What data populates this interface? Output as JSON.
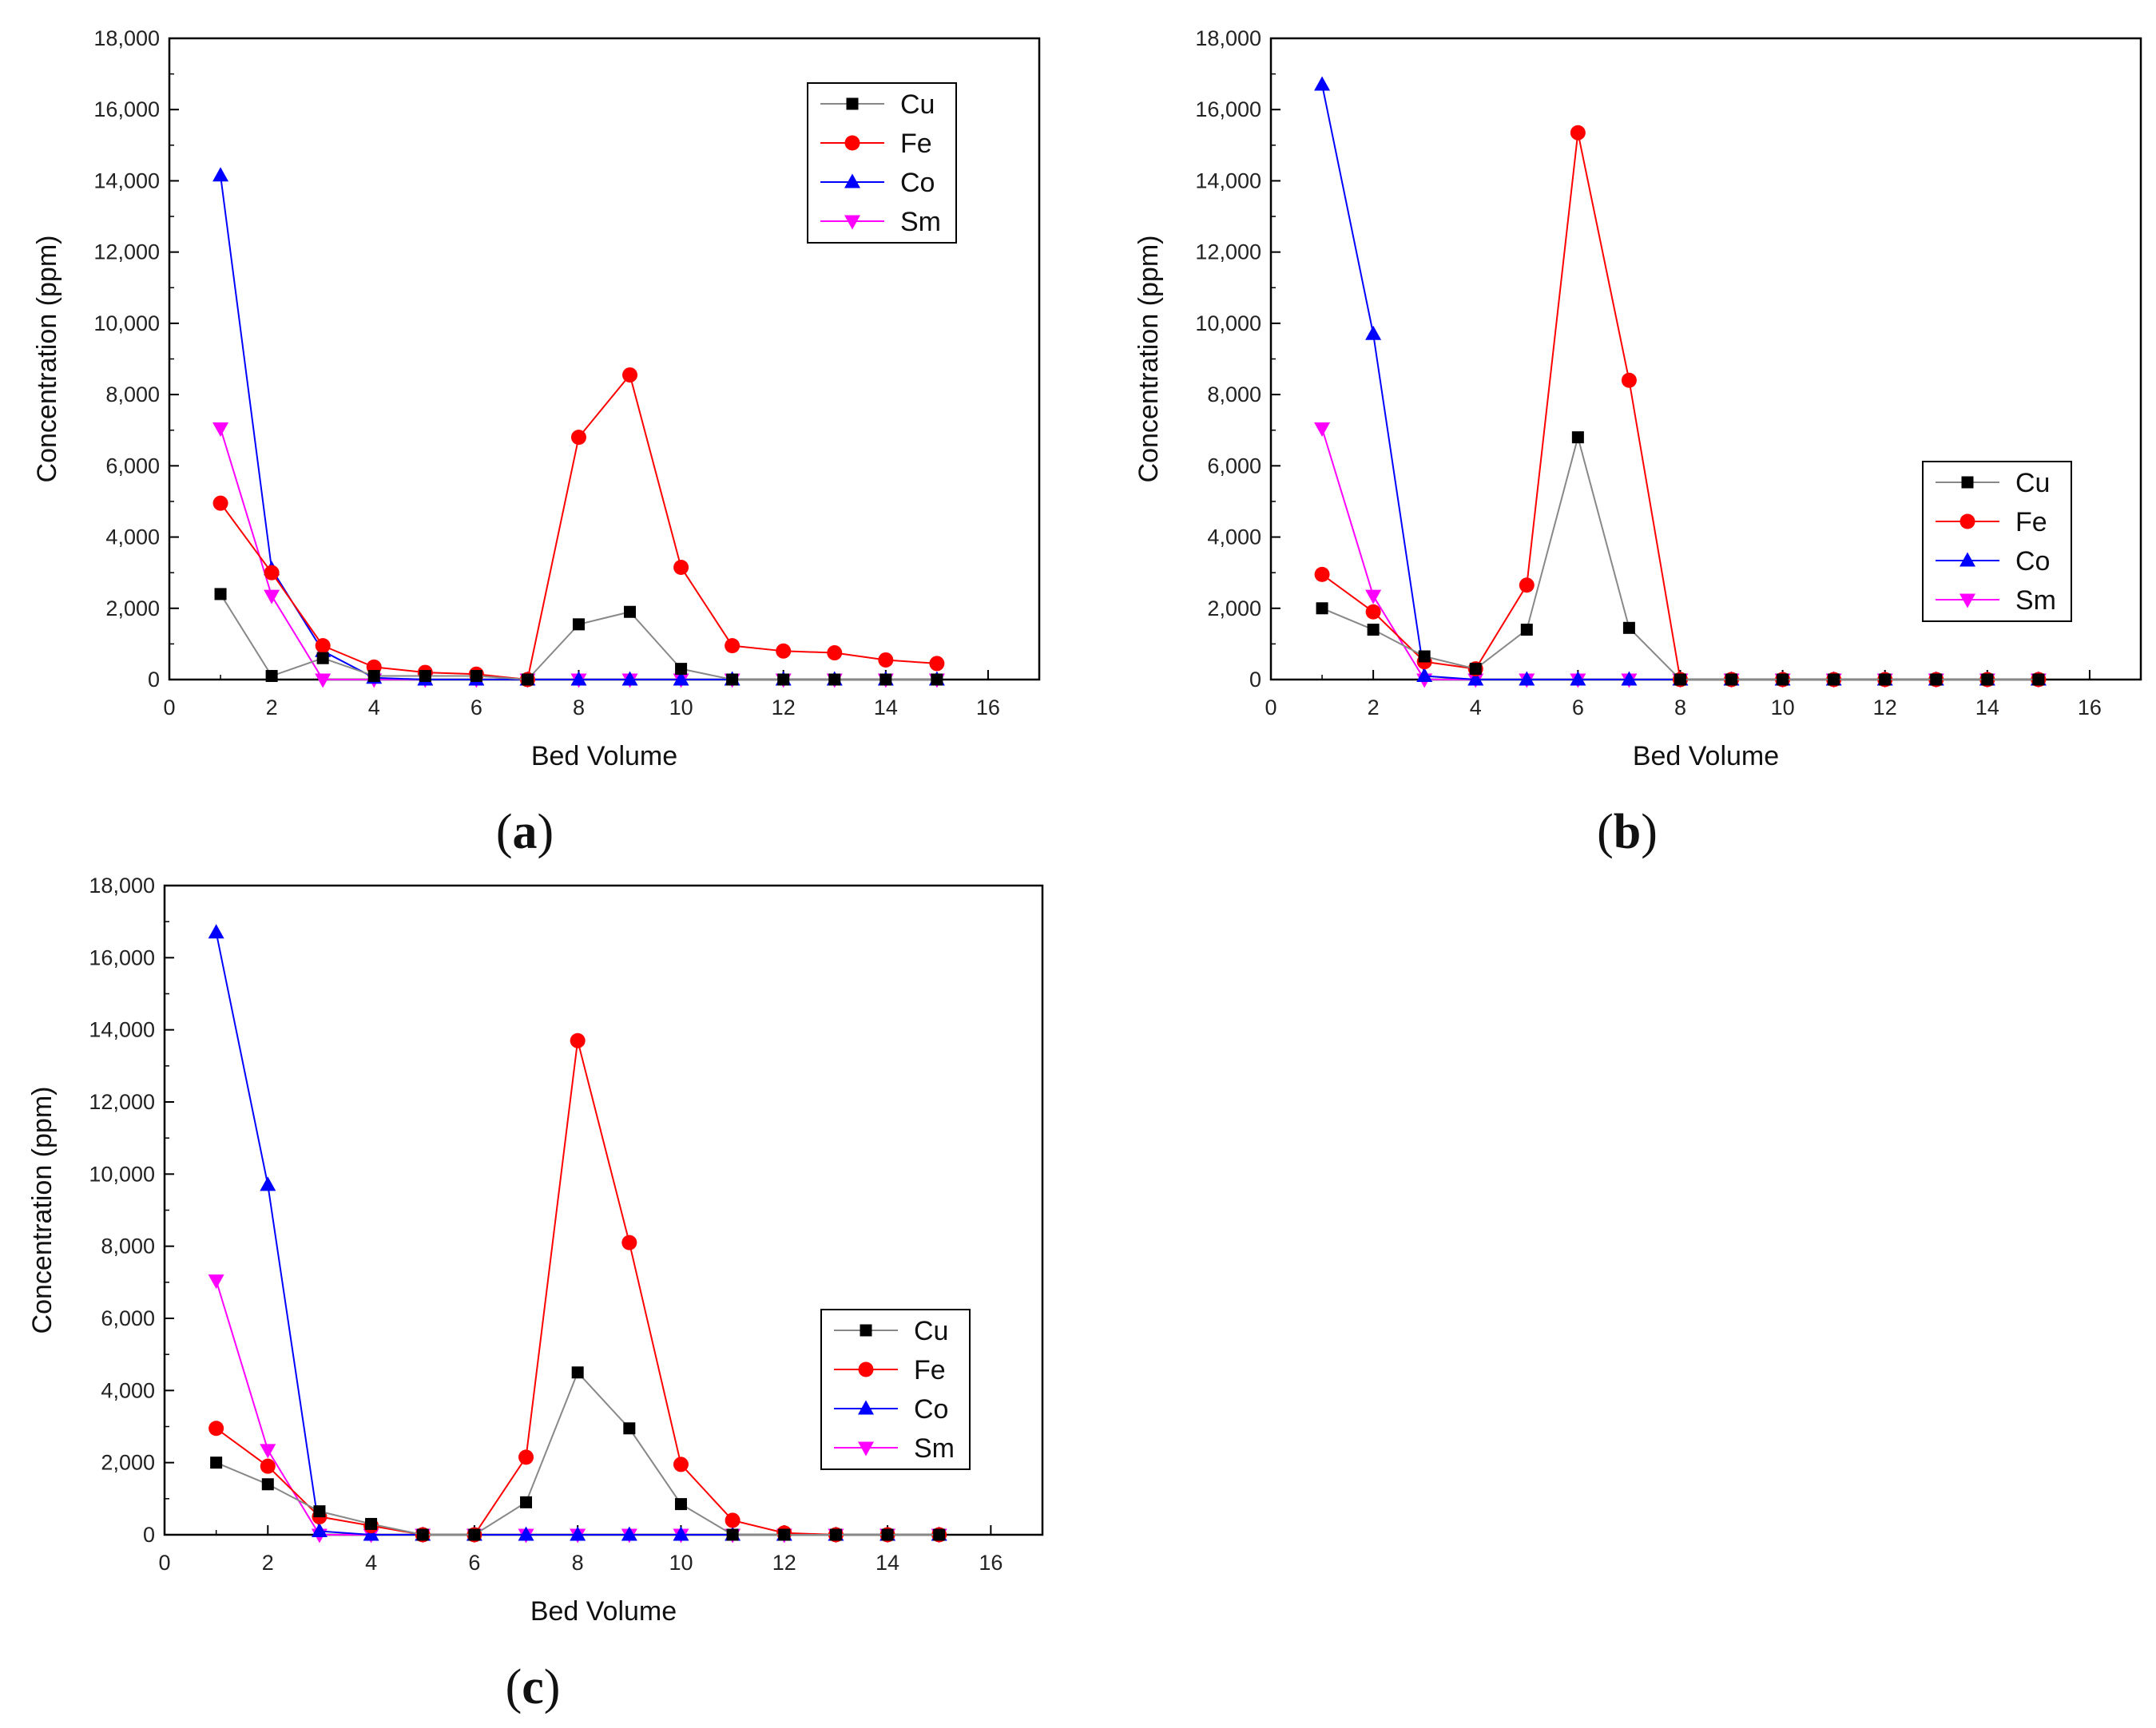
{
  "colors": {
    "Cu": "#000000",
    "Fe": "#ff0000",
    "Co": "#0000ff",
    "Sm": "#ff00ff",
    "axis": "#000000",
    "Cu_line": "#888888"
  },
  "chart_data": [
    {
      "type": "line",
      "panel_label": "a",
      "xlabel": "Bed Volume",
      "ylabel": "Concentration (ppm)",
      "xlim": [
        0,
        17
      ],
      "ylim": [
        0,
        18000
      ],
      "xticks": [
        "0",
        "2",
        "4",
        "6",
        "8",
        "10",
        "12",
        "14",
        "16"
      ],
      "yticks": [
        "0",
        "2,000",
        "4,000",
        "6,000",
        "8,000",
        "10,000",
        "12,000",
        "14,000",
        "16,000",
        "18,000"
      ],
      "legend_position": "top-right",
      "x": [
        1,
        2,
        3,
        4,
        5,
        6,
        7,
        8,
        9,
        10,
        11,
        12,
        13,
        14,
        15
      ],
      "series": [
        {
          "name": "Cu",
          "marker": "square",
          "values": [
            2400,
            100,
            600,
            100,
            100,
            100,
            0,
            1550,
            1900,
            300,
            0,
            0,
            0,
            0,
            0
          ]
        },
        {
          "name": "Fe",
          "marker": "circle",
          "values": [
            4950,
            3000,
            950,
            350,
            200,
            150,
            0,
            6800,
            8550,
            3150,
            950,
            800,
            750,
            550,
            450
          ]
        },
        {
          "name": "Co",
          "marker": "triangle-up",
          "values": [
            14150,
            3100,
            800,
            50,
            0,
            0,
            0,
            0,
            0,
            0,
            0,
            0,
            0,
            0,
            0
          ]
        },
        {
          "name": "Sm",
          "marker": "triangle-down",
          "values": [
            7050,
            2350,
            0,
            0,
            0,
            0,
            0,
            0,
            0,
            0,
            0,
            0,
            0,
            0,
            0
          ]
        }
      ]
    },
    {
      "type": "line",
      "panel_label": "b",
      "xlabel": "Bed Volume",
      "ylabel": "Concentration (ppm)",
      "xlim": [
        0,
        17
      ],
      "ylim": [
        0,
        18000
      ],
      "xticks": [
        "0",
        "2",
        "4",
        "6",
        "8",
        "10",
        "12",
        "14",
        "16"
      ],
      "yticks": [
        "0",
        "2,000",
        "4,000",
        "6,000",
        "8,000",
        "10,000",
        "12,000",
        "14,000",
        "16,000",
        "18,000"
      ],
      "legend_position": "center-right",
      "x": [
        1,
        2,
        3,
        4,
        5,
        6,
        7,
        8,
        9,
        10,
        11,
        12,
        13,
        14,
        15
      ],
      "series": [
        {
          "name": "Cu",
          "marker": "square",
          "values": [
            2000,
            1400,
            650,
            300,
            1400,
            6800,
            1450,
            0,
            0,
            0,
            0,
            0,
            0,
            0,
            0
          ]
        },
        {
          "name": "Fe",
          "marker": "circle",
          "values": [
            2950,
            1900,
            500,
            300,
            2650,
            15350,
            8400,
            0,
            0,
            0,
            0,
            0,
            0,
            0,
            0
          ]
        },
        {
          "name": "Co",
          "marker": "triangle-up",
          "values": [
            16700,
            9700,
            100,
            0,
            0,
            0,
            0,
            0,
            0,
            0,
            0,
            0,
            0,
            0,
            0
          ]
        },
        {
          "name": "Sm",
          "marker": "triangle-down",
          "values": [
            7050,
            2350,
            0,
            0,
            0,
            0,
            0,
            0,
            0,
            0,
            0,
            0,
            0,
            0,
            0
          ]
        }
      ]
    },
    {
      "type": "line",
      "panel_label": "c",
      "xlabel": "Bed Volume",
      "ylabel": "Concentration (ppm)",
      "xlim": [
        0,
        17
      ],
      "ylim": [
        0,
        18000
      ],
      "xticks": [
        "0",
        "2",
        "4",
        "6",
        "8",
        "10",
        "12",
        "14",
        "16"
      ],
      "yticks": [
        "0",
        "2,000",
        "4,000",
        "6,000",
        "8,000",
        "10,000",
        "12,000",
        "14,000",
        "16,000",
        "18,000"
      ],
      "legend_position": "lower-right",
      "x": [
        1,
        2,
        3,
        4,
        5,
        6,
        7,
        8,
        9,
        10,
        11,
        12,
        13,
        14,
        15
      ],
      "series": [
        {
          "name": "Cu",
          "marker": "square",
          "values": [
            2000,
            1400,
            650,
            300,
            0,
            0,
            900,
            4500,
            2950,
            850,
            0,
            0,
            0,
            0,
            0
          ]
        },
        {
          "name": "Fe",
          "marker": "circle",
          "values": [
            2950,
            1900,
            500,
            250,
            0,
            0,
            2150,
            13700,
            8100,
            1950,
            400,
            50,
            0,
            0,
            0
          ]
        },
        {
          "name": "Co",
          "marker": "triangle-up",
          "values": [
            16700,
            9700,
            100,
            0,
            0,
            0,
            0,
            0,
            0,
            0,
            0,
            0,
            0,
            0,
            0
          ]
        },
        {
          "name": "Sm",
          "marker": "triangle-down",
          "values": [
            7050,
            2350,
            0,
            0,
            0,
            0,
            0,
            0,
            0,
            0,
            0,
            0,
            0,
            0,
            0
          ]
        }
      ]
    }
  ]
}
